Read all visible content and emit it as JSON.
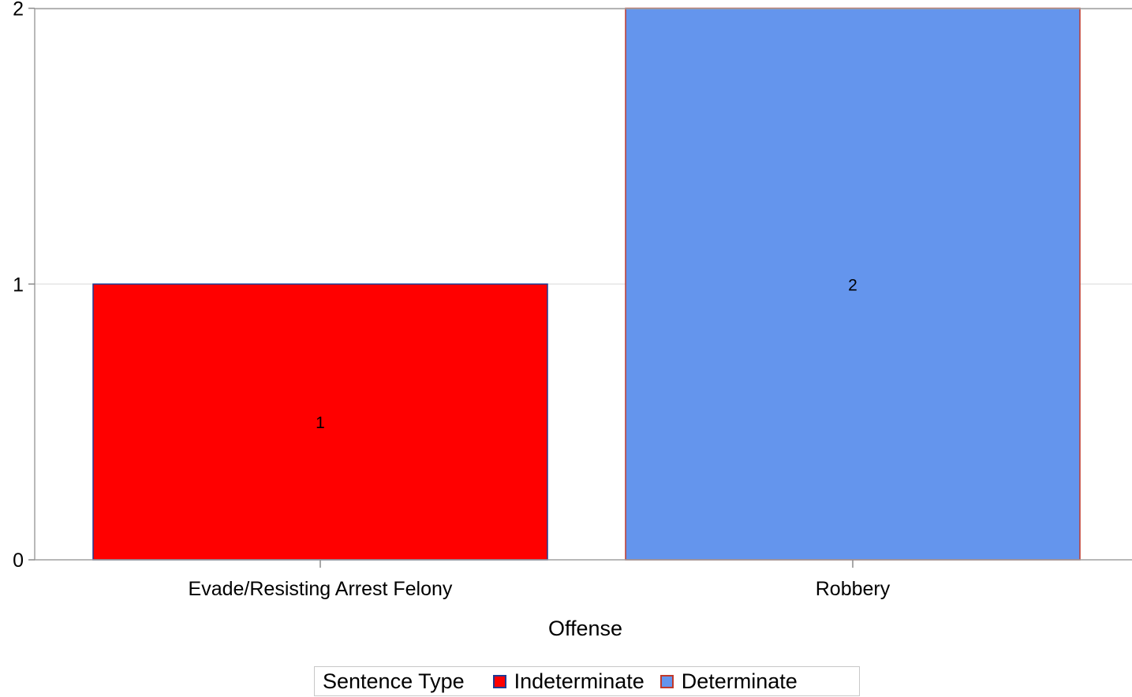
{
  "chart_data": {
    "type": "bar",
    "categories": [
      "Evade/Resisting Arrest Felony",
      "Robbery"
    ],
    "bars": [
      {
        "category": "Evade/Resisting Arrest Felony",
        "value": 1,
        "label": "1",
        "group": "Indeterminate"
      },
      {
        "category": "Robbery",
        "value": 2,
        "label": "2",
        "group": "Determinate"
      }
    ],
    "xlabel": "Offense",
    "ylabel": "",
    "ylim": [
      0,
      2
    ],
    "yticks": [
      "0",
      "1",
      "2"
    ],
    "grid": true,
    "legend": {
      "title": "Sentence Type",
      "placement": "bottom",
      "entries": [
        {
          "name": "Indeterminate",
          "fill": "#ff0000",
          "border": "#1f3a93"
        },
        {
          "name": "Determinate",
          "fill": "#6495ed",
          "border": "#c0392b"
        }
      ]
    }
  }
}
